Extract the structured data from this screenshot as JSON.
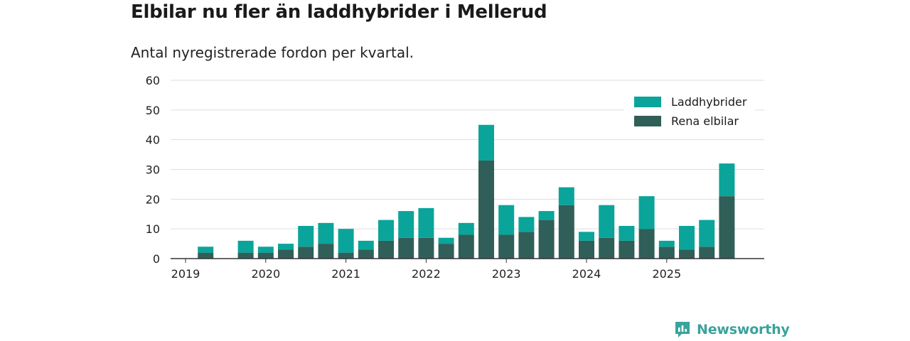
{
  "title": "Elbilar nu fler än laddhybrider i Mellerud",
  "subtitle": "Antal nyregistrerade fordon per kvartal.",
  "brand": "Newsworthy",
  "colors": {
    "laddhybrider": "#0aa49a",
    "elbilar": "#2f5f58",
    "grid": "#dddddd",
    "axis": "#333333"
  },
  "legend": [
    {
      "label": "Laddhybrider",
      "color": "#0aa49a"
    },
    {
      "label": "Rena elbilar",
      "color": "#2f5f58"
    }
  ],
  "chart_data": {
    "type": "bar",
    "stacked": true,
    "title": "Elbilar nu fler än laddhybrider i Mellerud",
    "subtitle": "Antal nyregistrerade fordon per kvartal.",
    "ylim": [
      0,
      60
    ],
    "yticks": [
      0,
      10,
      20,
      30,
      40,
      50,
      60
    ],
    "xticks": [
      "2019",
      "2020",
      "2021",
      "2022",
      "2023",
      "2024",
      "2025"
    ],
    "categories": [
      "2019Q1",
      "2019Q2",
      "2019Q3",
      "2019Q4",
      "2020Q1",
      "2020Q2",
      "2020Q3",
      "2020Q4",
      "2021Q1",
      "2021Q2",
      "2021Q3",
      "2021Q4",
      "2022Q1",
      "2022Q2",
      "2022Q3",
      "2022Q4",
      "2023Q1",
      "2023Q2",
      "2023Q3",
      "2023Q4",
      "2024Q1",
      "2024Q2",
      "2024Q3",
      "2024Q4",
      "2025Q1",
      "2025Q2",
      "2025Q3",
      "2025Q4"
    ],
    "series": [
      {
        "name": "Rena elbilar",
        "values": [
          0,
          2,
          0,
          2,
          2,
          3,
          4,
          5,
          2,
          3,
          6,
          7,
          7,
          5,
          8,
          33,
          8,
          9,
          13,
          18,
          6,
          7,
          6,
          10,
          4,
          3,
          4,
          21
        ]
      },
      {
        "name": "Laddhybrider",
        "values": [
          0,
          2,
          0,
          4,
          2,
          2,
          7,
          7,
          8,
          3,
          7,
          9,
          10,
          2,
          4,
          12,
          10,
          5,
          3,
          6,
          3,
          11,
          5,
          11,
          2,
          8,
          9,
          11
        ]
      }
    ],
    "legend_position": "top-right",
    "grid": true
  }
}
